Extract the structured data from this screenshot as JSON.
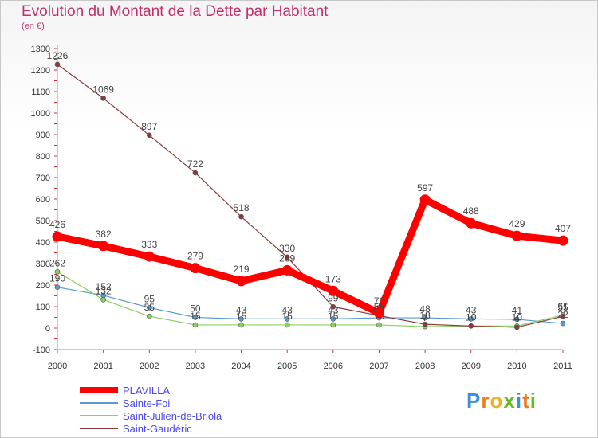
{
  "title": "Evolution du Montant de la Dette par Habitant",
  "subtitle": "(en €)",
  "logo": {
    "text": "Proxiti",
    "letters": [
      "P",
      "r",
      "o",
      "x",
      "i",
      "t",
      "i"
    ],
    "colors": [
      "#3a8fd8",
      "#f07a1a",
      "#f0b020",
      "#6ab82a",
      "#3a8fd8",
      "#f07a1a",
      "#6ab82a"
    ]
  },
  "chart_data": {
    "type": "line",
    "categories": [
      "2000",
      "2001",
      "2002",
      "2003",
      "2004",
      "2005",
      "2006",
      "2007",
      "2008",
      "2009",
      "2010",
      "2011"
    ],
    "ylim": [
      -100,
      1300
    ],
    "yticks": [
      -100,
      0,
      100,
      200,
      300,
      400,
      500,
      600,
      700,
      800,
      900,
      1000,
      1100,
      1200,
      1300
    ],
    "grid": false,
    "legend_position": "bottom-left",
    "series": [
      {
        "name": "PLAVILLA",
        "color": "#ff0000",
        "values": [
          426,
          382,
          333,
          279,
          219,
          269,
          173,
          70,
          597,
          488,
          429,
          407
        ],
        "labels": [
          "426",
          "382",
          "333",
          "279",
          "219",
          "269",
          "173",
          "70",
          "597",
          "488",
          "429",
          "407"
        ]
      },
      {
        "name": "Sainte-Foi",
        "color": "#5a9ad0",
        "values": [
          190,
          152,
          95,
          50,
          43,
          43,
          43,
          48,
          48,
          43,
          41,
          22
        ],
        "labels": [
          "190",
          "152",
          "95",
          "50",
          "43",
          "43",
          "43",
          "48",
          "48",
          "43",
          "41",
          "22"
        ]
      },
      {
        "name": "Saint-Julien-de-Briola",
        "color": "#88d060",
        "values": [
          262,
          132,
          55,
          15,
          15,
          15,
          15,
          15,
          7,
          10,
          10,
          61
        ],
        "labels": [
          "262",
          "132",
          "55",
          "15",
          "15",
          "15",
          "15",
          "15",
          "7",
          "10",
          "10",
          "61"
        ]
      },
      {
        "name": "Saint-Gaudéric",
        "color": "#8b3a3a",
        "values": [
          1226,
          1069,
          897,
          722,
          518,
          330,
          99,
          58,
          18,
          10,
          4,
          55
        ],
        "labels": [
          "1226",
          "1069",
          "897",
          "722",
          "518",
          "330",
          "99",
          "58",
          "18",
          "10",
          "4",
          "55"
        ]
      }
    ]
  }
}
